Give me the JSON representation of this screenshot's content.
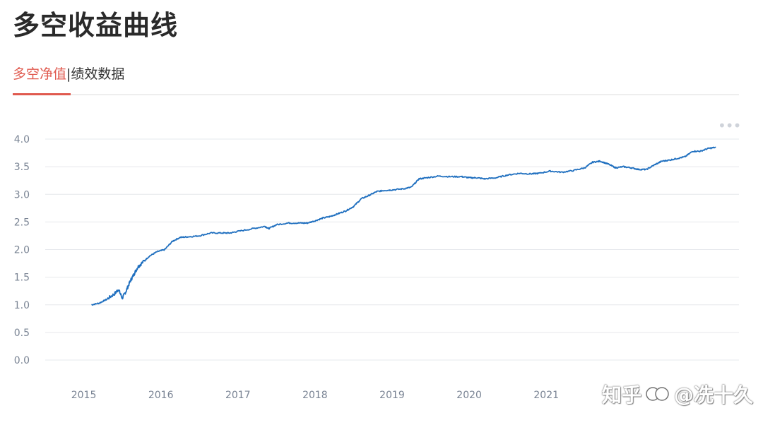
{
  "page": {
    "title": "多空收益曲线",
    "tabs": [
      {
        "label": "多空净值",
        "active": true
      },
      {
        "label": "绩效数据",
        "active": false
      }
    ],
    "tab_separator": "|",
    "watermark": {
      "left_text": "知乎",
      "right_text": "@冼十久"
    }
  },
  "colors": {
    "line": "#1f6fbf",
    "tab_active": "#e05a4f",
    "grid": "#e6e8ec",
    "tick_text": "#7a8494"
  },
  "chart_data": {
    "type": "line",
    "title": "",
    "xlabel": "",
    "ylabel": "",
    "ylim": [
      0,
      4
    ],
    "xlim": [
      2014.5,
      2023.5
    ],
    "yticks": [
      "0.0",
      "0.5",
      "1.0",
      "1.5",
      "2.0",
      "2.5",
      "3.0",
      "3.5",
      "4.0"
    ],
    "xticks": [
      "2015",
      "2016",
      "2017",
      "2018",
      "2019",
      "2020",
      "2021"
    ],
    "grid": true,
    "legend": "none",
    "series": [
      {
        "x": [
          2015.1,
          2015.2,
          2015.3,
          2015.4,
          2015.45,
          2015.5,
          2015.55,
          2015.6,
          2015.65,
          2015.7,
          2015.75,
          2015.85,
          2015.95,
          2016.05,
          2016.15,
          2016.25,
          2016.35,
          2016.5,
          2016.65,
          2016.8,
          2016.9,
          2017.0,
          2017.2,
          2017.35,
          2017.4,
          2017.5,
          2017.65,
          2017.8,
          2017.9,
          2018.0,
          2018.1,
          2018.2,
          2018.3,
          2018.4,
          2018.5,
          2018.6,
          2018.7,
          2018.8,
          2018.9,
          2019.0,
          2019.15,
          2019.25,
          2019.35,
          2019.45,
          2019.6,
          2019.75,
          2019.9,
          2020.0,
          2020.1,
          2020.2,
          2020.35,
          2020.5,
          2020.65,
          2020.8,
          2020.9,
          2021.05,
          2021.2,
          2021.35,
          2021.5,
          2021.6,
          2021.7,
          2021.8,
          2021.9,
          2022.0,
          2022.1,
          2022.2,
          2022.3,
          2022.4,
          2022.5,
          2022.6,
          2022.7,
          2022.8,
          2022.9,
          2023.0,
          2023.1,
          2023.2
        ],
        "y": [
          1.0,
          1.03,
          1.1,
          1.2,
          1.28,
          1.12,
          1.25,
          1.42,
          1.55,
          1.68,
          1.75,
          1.88,
          1.96,
          2.0,
          2.15,
          2.22,
          2.23,
          2.25,
          2.3,
          2.3,
          2.3,
          2.33,
          2.38,
          2.42,
          2.38,
          2.45,
          2.48,
          2.48,
          2.48,
          2.52,
          2.57,
          2.6,
          2.65,
          2.7,
          2.78,
          2.92,
          2.98,
          3.05,
          3.07,
          3.08,
          3.1,
          3.13,
          3.28,
          3.3,
          3.33,
          3.32,
          3.32,
          3.3,
          3.3,
          3.28,
          3.3,
          3.35,
          3.38,
          3.37,
          3.38,
          3.42,
          3.4,
          3.43,
          3.48,
          3.58,
          3.6,
          3.55,
          3.48,
          3.5,
          3.48,
          3.45,
          3.45,
          3.53,
          3.6,
          3.62,
          3.65,
          3.68,
          3.78,
          3.78,
          3.83,
          3.85
        ]
      }
    ]
  }
}
